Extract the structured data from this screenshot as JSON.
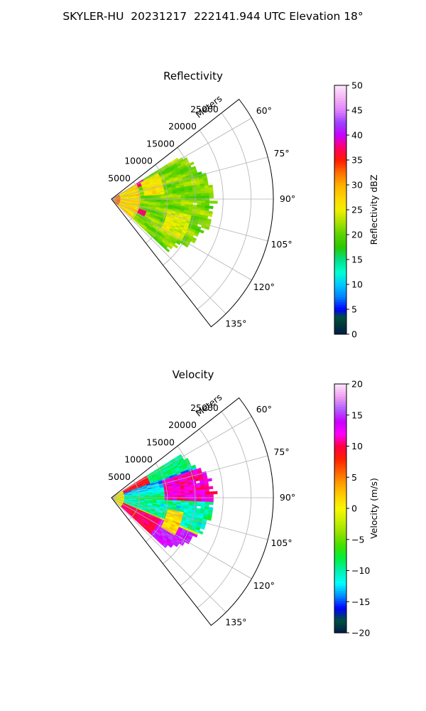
{
  "figure": {
    "title": "SKYLER-HU  20231217  222141.944 UTC Elevation 18°"
  },
  "chart_data": [
    {
      "type": "heatmap",
      "subtype": "polar-ppi-sector",
      "title": "Reflectivity",
      "range_axis_label": "Meters",
      "range_ticks": [
        "5000",
        "10000",
        "15000",
        "20000",
        "25000"
      ],
      "azimuth_ticks": [
        "60°",
        "75°",
        "90°",
        "105°",
        "120°",
        "135°"
      ],
      "azimuth_range_deg": [
        52,
        142
      ],
      "range_max_m": 29000,
      "data_extent_m": 18000,
      "grid": true,
      "colorbar": {
        "label": "Reflectivity dBZ",
        "min": 0,
        "max": 50,
        "tick_labels": [
          "0",
          "5",
          "10",
          "15",
          "20",
          "25",
          "30",
          "35",
          "40",
          "45",
          "50"
        ],
        "stops": [
          [
            0,
            "#001a4d"
          ],
          [
            2,
            "#003a3a"
          ],
          [
            3.5,
            "#00503c"
          ],
          [
            5,
            "#0000ff"
          ],
          [
            7.5,
            "#0080ff"
          ],
          [
            10,
            "#00c8ff"
          ],
          [
            12.5,
            "#00ffd0"
          ],
          [
            15,
            "#00e08a"
          ],
          [
            17.5,
            "#28c800"
          ],
          [
            20,
            "#5ad200"
          ],
          [
            22.5,
            "#a8e000"
          ],
          [
            25,
            "#f0f000"
          ],
          [
            27.5,
            "#ffd400"
          ],
          [
            30,
            "#ffb000"
          ],
          [
            32.5,
            "#ff7000"
          ],
          [
            35,
            "#ff1a00"
          ],
          [
            37.5,
            "#ff0066"
          ],
          [
            40,
            "#c800ff"
          ],
          [
            42.5,
            "#9a40ff"
          ],
          [
            45,
            "#e080ff"
          ],
          [
            47.5,
            "#f4b4f4"
          ],
          [
            50,
            "#fde6fd"
          ]
        ]
      }
    },
    {
      "type": "heatmap",
      "subtype": "polar-ppi-sector",
      "title": "Velocity",
      "range_axis_label": "Meters",
      "range_ticks": [
        "5000",
        "10000",
        "15000",
        "20000",
        "25000"
      ],
      "azimuth_ticks": [
        "60°",
        "75°",
        "90°",
        "105°",
        "120°",
        "135°"
      ],
      "azimuth_range_deg": [
        52,
        142
      ],
      "range_max_m": 29000,
      "data_extent_m": 18000,
      "grid": true,
      "colorbar": {
        "label": "Velocity (m/s)",
        "min": -20,
        "max": 20,
        "tick_labels": [
          "−20",
          "−15",
          "−10",
          "−5",
          "0",
          "5",
          "10",
          "15",
          "20"
        ],
        "stops": [
          [
            -20,
            "#001a4d"
          ],
          [
            -18,
            "#00503c"
          ],
          [
            -16,
            "#0000ff"
          ],
          [
            -14,
            "#0090ff"
          ],
          [
            -12,
            "#00ffff"
          ],
          [
            -10,
            "#00f0b0"
          ],
          [
            -8,
            "#00f040"
          ],
          [
            -6,
            "#40e000"
          ],
          [
            -4,
            "#90e000"
          ],
          [
            -2,
            "#c8f000"
          ],
          [
            0,
            "#f8f800"
          ],
          [
            2,
            "#ffd000"
          ],
          [
            4,
            "#ffa000"
          ],
          [
            6,
            "#ff6000"
          ],
          [
            8,
            "#ff2000"
          ],
          [
            10,
            "#ff0040"
          ],
          [
            12,
            "#ff00ff"
          ],
          [
            14,
            "#c800ff"
          ],
          [
            16,
            "#b060ff"
          ],
          [
            18,
            "#f0a0f0"
          ],
          [
            20,
            "#fde6fd"
          ]
        ]
      }
    }
  ]
}
